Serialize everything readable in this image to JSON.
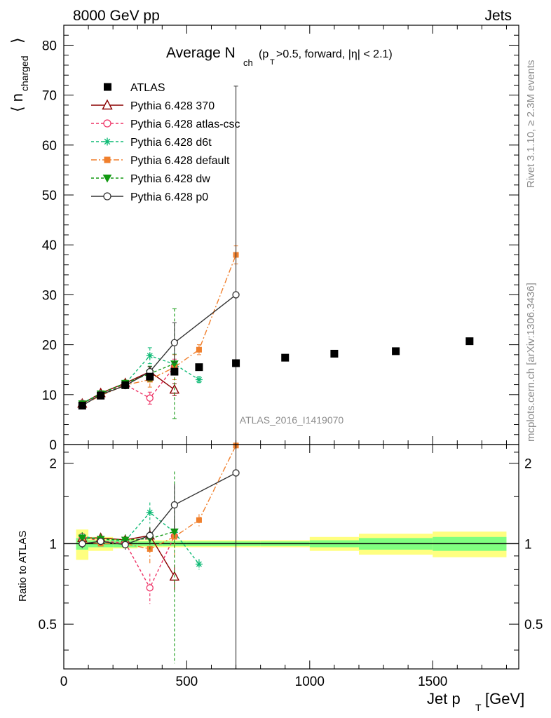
{
  "header": {
    "left": "8000 GeV pp",
    "right": "Jets"
  },
  "side": {
    "rivet": "Rivet 3.1.10, ≥ 2.3M events",
    "mcplots": "mcplots.cern.ch [arXiv:1306.3436]"
  },
  "chart_data": {
    "type": "scatter",
    "title_main": "Average N",
    "title_sub": "ch",
    "title_cond_p": "(p",
    "title_cond_T": "T",
    "title_cond_rest": ">0.5, forward, |η| < 2.1)",
    "ylabel_main": "⟨ n",
    "ylabel_sub": "charged",
    "ylabel_close": "⟩",
    "ratio_ylabel": "Ratio to ATLAS",
    "xlabel_main": "Jet p",
    "xlabel_sub": "T",
    "xlabel_unit": "[GeV]",
    "watermark": "ATLAS_2016_I1419070",
    "xlim": [
      0,
      1850
    ],
    "ylim": [
      0,
      84
    ],
    "ratio_ylim": [
      0.34,
      2.35
    ],
    "ratio_scale": "log",
    "x_ticks": [
      "0",
      "500",
      "1000",
      "1500"
    ],
    "y_ticks": [
      "0",
      "10",
      "20",
      "30",
      "40",
      "50",
      "60",
      "70",
      "80"
    ],
    "ratio_ticks": [
      "0.5",
      "1",
      "2"
    ],
    "legend_position": "top-left",
    "data": {
      "name": "ATLAS",
      "color": "#000000",
      "x": [
        75,
        150,
        250,
        350,
        450,
        550,
        700,
        900,
        1100,
        1350,
        1650
      ],
      "xerr": [
        25,
        50,
        50,
        50,
        50,
        50,
        100,
        100,
        100,
        150,
        150
      ],
      "y": [
        7.8,
        9.8,
        11.9,
        13.6,
        14.6,
        15.5,
        16.3,
        17.4,
        18.2,
        18.7,
        20.7
      ],
      "band_green": [
        0.05,
        0.03,
        0.03,
        0.02,
        0.02,
        0.02,
        0.02,
        0.02,
        0.03,
        0.05,
        0.06
      ],
      "band_yellow": [
        0.13,
        0.06,
        0.04,
        0.03,
        0.03,
        0.03,
        0.03,
        0.03,
        0.06,
        0.09,
        0.11
      ]
    },
    "series": [
      {
        "name": "Pythia 6.428 370",
        "color": "#8b0000",
        "dash": "",
        "marker": "triangle-open",
        "x": [
          75,
          150,
          250,
          350,
          450
        ],
        "y": [
          8.2,
          10.3,
          12.3,
          14.6,
          11.0
        ],
        "err": [
          0.3,
          0.4,
          0.5,
          1.0,
          1.2
        ]
      },
      {
        "name": "Pythia 6.428 atlas-csc",
        "color": "#ee3366",
        "dash": "4,3",
        "marker": "circle-open",
        "x": [
          75,
          150,
          250,
          350,
          450
        ],
        "y": [
          8.3,
          10.0,
          12.0,
          9.3,
          15.6
        ],
        "err": [
          0.3,
          0.3,
          0.4,
          1.2,
          1.5
        ]
      },
      {
        "name": "Pythia 6.428 d6t",
        "color": "#11bb77",
        "dash": "4,3",
        "marker": "star",
        "x": [
          75,
          150,
          250,
          350,
          450,
          550
        ],
        "y": [
          8.3,
          10.2,
          12.2,
          17.8,
          16.1,
          13.0
        ],
        "err": [
          0.3,
          0.4,
          0.4,
          1.6,
          2.0,
          0.6
        ]
      },
      {
        "name": "Pythia 6.428 default",
        "color": "#f07f2c",
        "dash": "8,3,2,3",
        "marker": "square",
        "x": [
          75,
          150,
          250,
          350,
          450,
          550,
          700
        ],
        "y": [
          7.9,
          9.8,
          11.9,
          13.0,
          15.5,
          19.0,
          38.0
        ],
        "err": [
          0.3,
          0.3,
          0.5,
          1.5,
          2.5,
          1.0,
          1.8
        ]
      },
      {
        "name": "Pythia 6.428 dw",
        "color": "#119911",
        "dash": "4,3",
        "marker": "triangle-down",
        "x": [
          75,
          150,
          250,
          350,
          450
        ],
        "y": [
          8.2,
          10.2,
          12.3,
          14.2,
          16.2
        ],
        "err": [
          0.4,
          0.5,
          0.6,
          1.5,
          11.0
        ]
      },
      {
        "name": "Pythia 6.428 p0",
        "color": "#333333",
        "dash": "",
        "marker": "circle-open",
        "x": [
          75,
          150,
          250,
          350,
          450,
          700
        ],
        "y": [
          7.8,
          10.0,
          11.8,
          14.6,
          20.4,
          30.0
        ],
        "err": [
          0.3,
          0.3,
          0.5,
          1.0,
          4.0,
          41.8
        ]
      }
    ]
  }
}
